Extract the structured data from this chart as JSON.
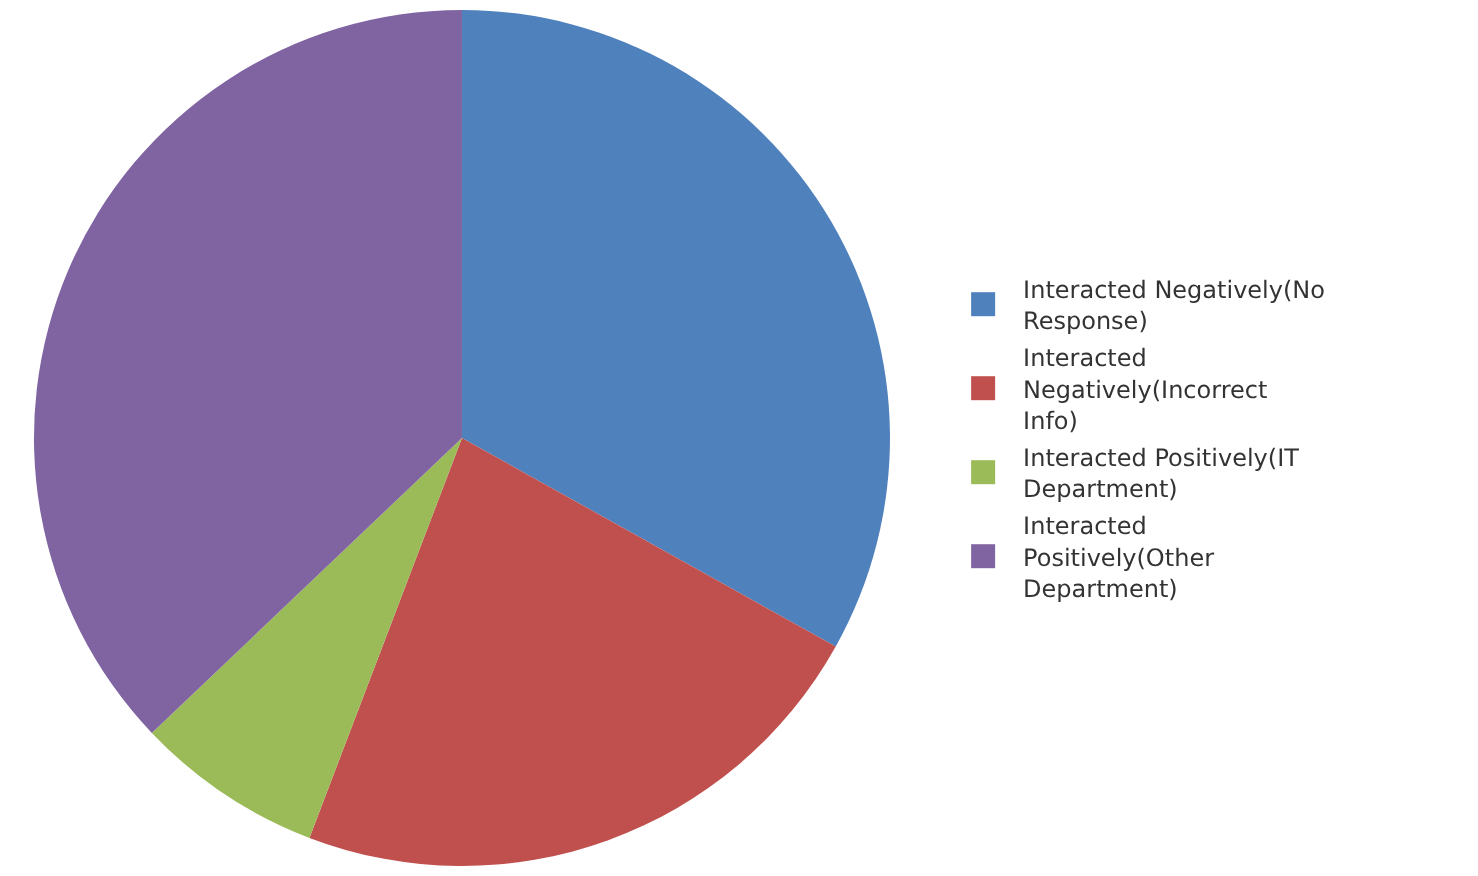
{
  "chart_data": {
    "type": "pie",
    "categories": [
      "Interacted Negatively(No Response)",
      "Interacted Negatively(Incorrect Info)",
      "Interacted Positively(IT Department)",
      "Interacted Positively(Other Department)"
    ],
    "values": [
      33.1,
      22.7,
      7.1,
      37.1
    ],
    "colors": [
      "#4f81bd",
      "#c0504d",
      "#9bbb59",
      "#8064a2"
    ],
    "legend": "right"
  }
}
